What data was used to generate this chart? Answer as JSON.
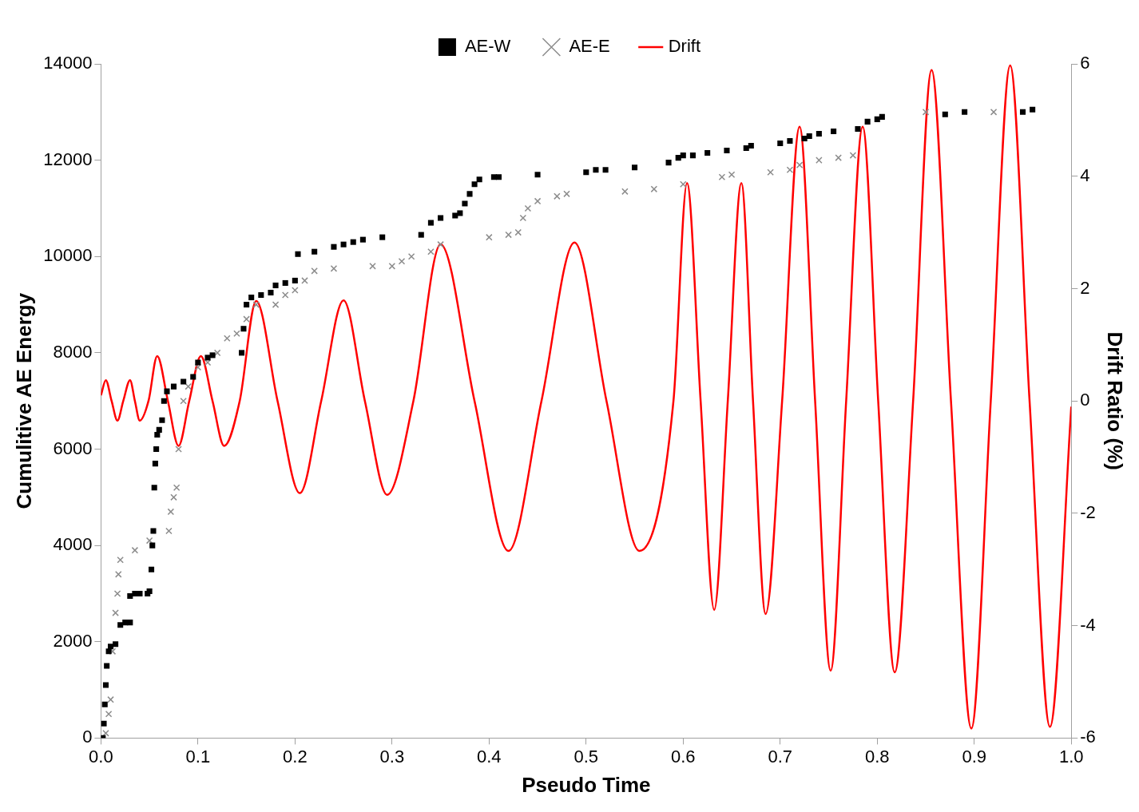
{
  "chart_data": {
    "type": "scatter",
    "xlabel": "Pseudo Time",
    "ylabel": "Cumulitive AE Energy",
    "y2label": "Drift Ratio (%)",
    "xlim": [
      0,
      1
    ],
    "xticks": [
      {
        "value": 0,
        "label": "0.0"
      },
      0.1,
      0.2,
      0.3,
      0.4,
      0.5,
      0.6,
      0.7,
      0.8,
      0.9,
      {
        "value": 1,
        "label": "1.0"
      }
    ],
    "ylim": [
      0,
      14000
    ],
    "yticks": [
      0,
      2000,
      4000,
      6000,
      8000,
      10000,
      12000,
      14000
    ],
    "y2lim": [
      -6,
      6
    ],
    "y2ticks": [
      -6,
      -4,
      -2,
      0,
      2,
      4,
      6
    ],
    "legend": "top",
    "grid": false,
    "series": [
      {
        "name": "AE-W",
        "marker": "square",
        "color": "#000000",
        "x": [
          0.002,
          0.003,
          0.004,
          0.005,
          0.006,
          0.008,
          0.01,
          0.015,
          0.02,
          0.025,
          0.03,
          0.03,
          0.035,
          0.04,
          0.048,
          0.05,
          0.052,
          0.053,
          0.054,
          0.055,
          0.056,
          0.057,
          0.058,
          0.06,
          0.063,
          0.065,
          0.068,
          0.075,
          0.085,
          0.095,
          0.1,
          0.11,
          0.115,
          0.145,
          0.147,
          0.15,
          0.155,
          0.165,
          0.175,
          0.18,
          0.19,
          0.2,
          0.203,
          0.22,
          0.24,
          0.25,
          0.26,
          0.27,
          0.29,
          0.33,
          0.34,
          0.35,
          0.365,
          0.37,
          0.375,
          0.38,
          0.385,
          0.39,
          0.405,
          0.41,
          0.45,
          0.5,
          0.51,
          0.52,
          0.55,
          0.585,
          0.595,
          0.6,
          0.61,
          0.625,
          0.645,
          0.665,
          0.67,
          0.7,
          0.71,
          0.725,
          0.73,
          0.74,
          0.755,
          0.78,
          0.79,
          0.8,
          0.805,
          0.87,
          0.89,
          0.95,
          0.96
        ],
        "values": [
          0,
          300,
          700,
          1100,
          1500,
          1800,
          1900,
          1950,
          2350,
          2400,
          2400,
          2950,
          3000,
          3000,
          3000,
          3050,
          3500,
          4000,
          4300,
          5200,
          5700,
          6000,
          6300,
          6400,
          6600,
          7000,
          7200,
          7300,
          7400,
          7500,
          7800,
          7900,
          7950,
          8000,
          8500,
          9000,
          9150,
          9200,
          9250,
          9400,
          9450,
          9500,
          10050,
          10100,
          10200,
          10250,
          10300,
          10350,
          10400,
          10450,
          10700,
          10800,
          10850,
          10900,
          11100,
          11300,
          11500,
          11600,
          11650,
          11650,
          11700,
          11750,
          11800,
          11800,
          11850,
          11950,
          12050,
          12100,
          12100,
          12150,
          12200,
          12250,
          12300,
          12350,
          12400,
          12450,
          12500,
          12550,
          12600,
          12650,
          12800,
          12850,
          12900,
          12950,
          13000,
          13000,
          13050
        ]
      },
      {
        "name": "AE-E",
        "marker": "cross",
        "color": "#8c8c8c",
        "x": [
          0.005,
          0.008,
          0.01,
          0.012,
          0.015,
          0.017,
          0.018,
          0.02,
          0.035,
          0.05,
          0.07,
          0.072,
          0.075,
          0.078,
          0.08,
          0.085,
          0.09,
          0.1,
          0.11,
          0.12,
          0.13,
          0.14,
          0.15,
          0.16,
          0.18,
          0.19,
          0.2,
          0.21,
          0.22,
          0.24,
          0.28,
          0.3,
          0.31,
          0.32,
          0.34,
          0.35,
          0.4,
          0.42,
          0.43,
          0.435,
          0.44,
          0.45,
          0.47,
          0.48,
          0.54,
          0.57,
          0.6,
          0.64,
          0.65,
          0.69,
          0.71,
          0.72,
          0.74,
          0.76,
          0.775,
          0.85,
          0.92
        ],
        "values": [
          100,
          500,
          800,
          1800,
          2600,
          3000,
          3400,
          3700,
          3900,
          4100,
          4300,
          4700,
          5000,
          5200,
          6000,
          7000,
          7300,
          7700,
          7800,
          8000,
          8300,
          8400,
          8700,
          9000,
          9000,
          9200,
          9300,
          9500,
          9700,
          9750,
          9800,
          9800,
          9900,
          10000,
          10100,
          10250,
          10400,
          10450,
          10500,
          10800,
          11000,
          11150,
          11250,
          11300,
          11350,
          11400,
          11500,
          11650,
          11700,
          11750,
          11800,
          11900,
          12000,
          12050,
          12100,
          13000,
          13000
        ]
      },
      {
        "name": "Drift",
        "type": "line",
        "marker": "none",
        "axis": "y2",
        "color": "#ff0000",
        "x": [
          0,
          0.005,
          0.011,
          0.017,
          0.023,
          0.03,
          0.035,
          0.04,
          0.049,
          0.058,
          0.069,
          0.08,
          0.091,
          0.103,
          0.115,
          0.127,
          0.143,
          0.16,
          0.182,
          0.205,
          0.227,
          0.25,
          0.272,
          0.295,
          0.322,
          0.35,
          0.385,
          0.42,
          0.454,
          0.488,
          0.521,
          0.555,
          0.59,
          0.604,
          0.618,
          0.632,
          0.646,
          0.66,
          0.672,
          0.685,
          0.702,
          0.72,
          0.736,
          0.752,
          0.768,
          0.785,
          0.801,
          0.818,
          0.837,
          0.856,
          0.876,
          0.897,
          0.917,
          0.937,
          0.957,
          0.978,
          1.0
        ],
        "values": [
          0.1,
          0.37,
          0,
          -0.35,
          0,
          0.37,
          0,
          -0.35,
          0,
          0.8,
          0,
          -0.8,
          0,
          0.8,
          0,
          -0.8,
          0,
          1.78,
          0,
          -1.64,
          0,
          1.79,
          0,
          -1.67,
          0,
          2.79,
          0,
          -2.67,
          0,
          2.82,
          0,
          -2.67,
          0,
          3.88,
          0,
          -3.72,
          0,
          3.88,
          0,
          -3.79,
          0,
          4.88,
          0,
          -4.8,
          0,
          4.88,
          0,
          -4.83,
          0,
          5.89,
          0,
          -5.83,
          0,
          5.97,
          0,
          -5.8,
          -0.1
        ]
      }
    ]
  }
}
